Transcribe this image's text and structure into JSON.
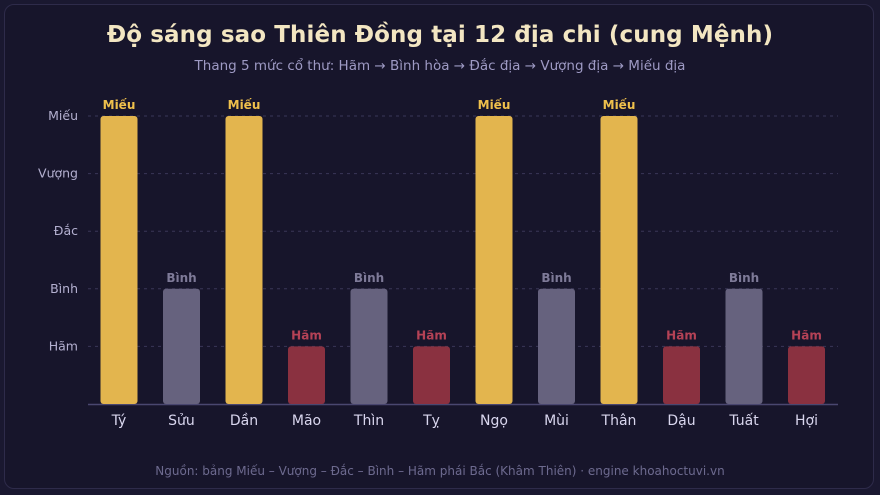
{
  "title": "Độ sáng sao Thiên Đồng tại 12 địa chi (cung Mệnh)",
  "subtitle": "Thang 5 mức cổ thư: Hãm → Bình hòa → Đắc địa → Vượng địa → Miếu địa",
  "footer": "Nguồn: bảng Miếu – Vượng – Đắc – Bình – Hãm phái Bắc (Khâm Thiên) · engine khoahoctuvi.vn",
  "colors": {
    "Miếu": "#e3b54e",
    "Bình": "#66627e",
    "Hãm": "#8a3140",
    "label_Miếu": "#efc04c",
    "label_Bình": "#7e7a98",
    "label_Hãm": "#b54256"
  },
  "chart_data": {
    "type": "bar",
    "title": "Độ sáng sao Thiên Đồng tại 12 địa chi (cung Mệnh)",
    "subtitle": "Thang 5 mức cổ thư: Hãm → Bình hòa → Đắc địa → Vượng địa → Miếu địa",
    "y_levels": [
      "Hãm",
      "Bình",
      "Đắc",
      "Vượng",
      "Miếu"
    ],
    "ylim": [
      0,
      5
    ],
    "grid": true,
    "categories": [
      "Tý",
      "Sửu",
      "Dần",
      "Mão",
      "Thìn",
      "Tỵ",
      "Ngọ",
      "Mùi",
      "Thân",
      "Dậu",
      "Tuất",
      "Hợi"
    ],
    "values": [
      5,
      2,
      5,
      1,
      2,
      1,
      5,
      2,
      5,
      1,
      2,
      1
    ],
    "data_labels": [
      "Miếu",
      "Bình",
      "Miếu",
      "Hãm",
      "Bình",
      "Hãm",
      "Miếu",
      "Bình",
      "Miếu",
      "Hãm",
      "Bình",
      "Hãm"
    ]
  }
}
